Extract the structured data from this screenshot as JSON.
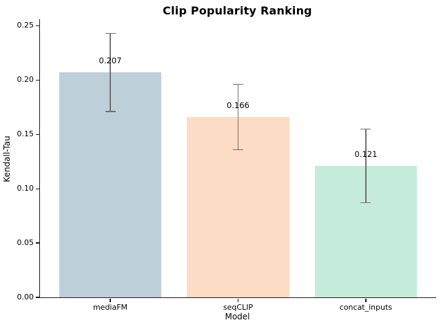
{
  "figure": {
    "title": "Clip Popularity Ranking"
  },
  "chart_data": {
    "type": "bar",
    "title": "Clip Popularity Ranking",
    "xlabel": "Model",
    "ylabel": "Kendall-Tau",
    "categories": [
      "mediaFM",
      "seqCLIP",
      "concat_inputs"
    ],
    "values": [
      0.207,
      0.166,
      0.121
    ],
    "errors": [
      0.036,
      0.03,
      0.034
    ],
    "bar_labels": [
      "0.207",
      "0.166",
      "0.121"
    ],
    "bar_colors": [
      "#bdd0d9",
      "#fcdcc5",
      "#c5ecda"
    ],
    "error_color": "#707070",
    "ylim": [
      0,
      0.256
    ],
    "yticks": [
      "0.00",
      "0.05",
      "0.10",
      "0.15",
      "0.20",
      "0.25"
    ],
    "ytick_values": [
      0,
      0.05,
      0.1,
      0.15,
      0.2,
      0.25
    ],
    "grid": false,
    "legend_position": "none"
  }
}
